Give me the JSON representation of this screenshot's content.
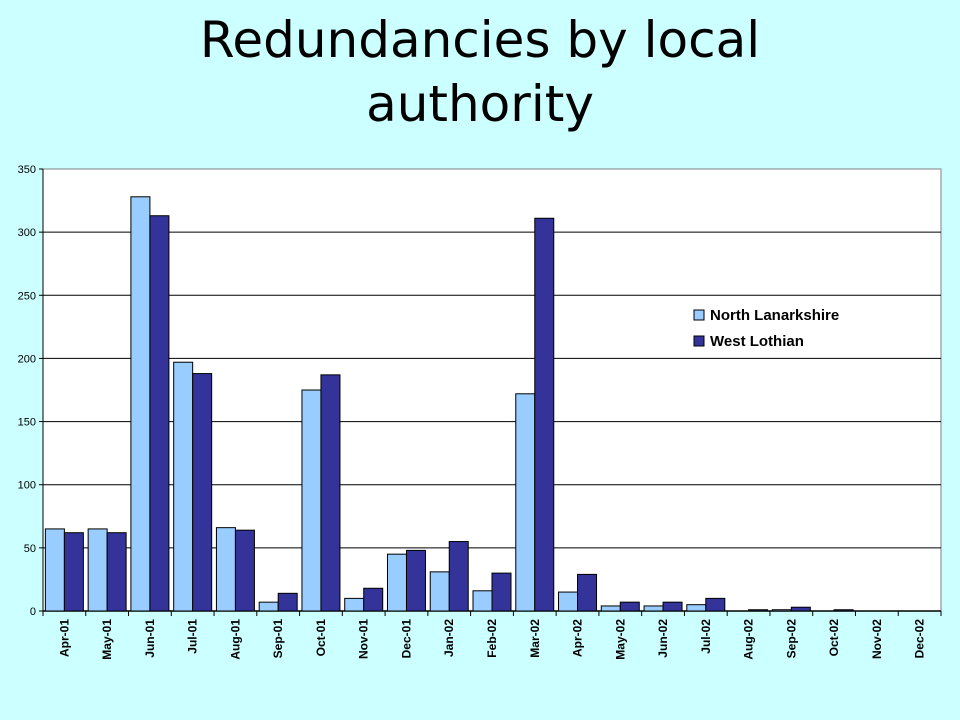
{
  "chart_data": {
    "type": "bar",
    "title": [
      "Redundancies by local",
      "authority"
    ],
    "xlabel": "",
    "ylabel": "",
    "ylim": [
      0,
      350
    ],
    "yticks": [
      0,
      50,
      100,
      150,
      200,
      250,
      300,
      350
    ],
    "grid": true,
    "legend_position": "right",
    "categories": [
      "Apr-01",
      "May-01",
      "Jun-01",
      "Jul-01",
      "Aug-01",
      "Sep-01",
      "Oct-01",
      "Nov-01",
      "Dec-01",
      "Jan-02",
      "Feb-02",
      "Mar-02",
      "Apr-02",
      "May-02",
      "Jun-02",
      "Jul-02",
      "Aug-02",
      "Sep-02",
      "Oct-02",
      "Nov-02",
      "Dec-02"
    ],
    "series": [
      {
        "name": "North Lanarkshire",
        "color": "#99ccff",
        "values": [
          65,
          65,
          328,
          197,
          66,
          7,
          175,
          10,
          45,
          31,
          16,
          172,
          15,
          4,
          4,
          5,
          0,
          1,
          0,
          0,
          0
        ]
      },
      {
        "name": "West Lothian",
        "color": "#333399",
        "values": [
          62,
          62,
          313,
          188,
          64,
          14,
          187,
          18,
          48,
          55,
          30,
          311,
          29,
          7,
          7,
          10,
          1,
          3,
          1,
          0,
          0
        ]
      }
    ]
  }
}
